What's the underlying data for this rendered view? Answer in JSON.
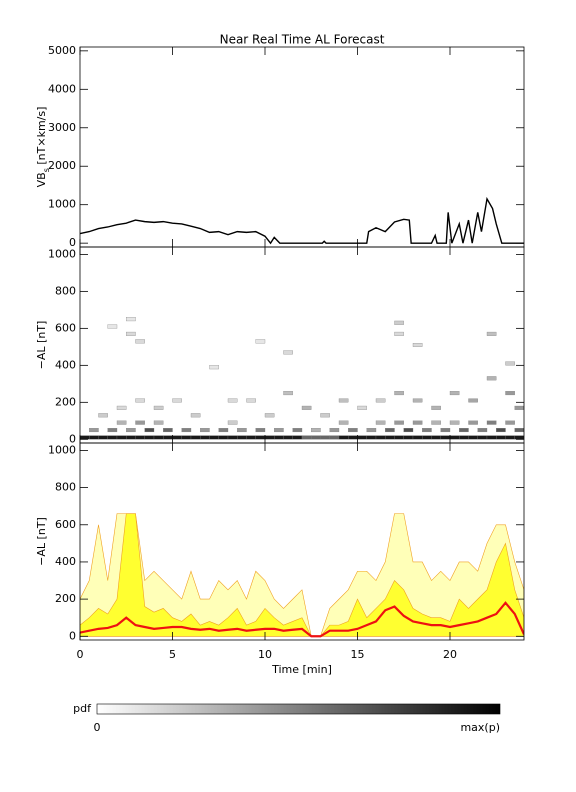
{
  "chart_data": [
    {
      "type": "line",
      "title": "Near Real Time AL Forecast",
      "ylabel": {
        "main": "VB",
        "sub": "s",
        "unit": " [nT×km/s]"
      },
      "color": "#000000",
      "x": [
        0,
        0.5,
        1,
        1.5,
        2,
        2.5,
        3,
        3.5,
        4,
        4.5,
        5,
        5.5,
        6,
        6.5,
        7,
        7.5,
        8,
        8.5,
        9,
        9.5,
        10,
        10.3,
        10.5,
        10.8,
        13.1,
        13.2,
        13.3,
        15.5,
        15.6,
        16,
        16.5,
        17,
        17.5,
        17.8,
        17.9,
        19,
        19.2,
        19.3,
        19.8,
        19.9,
        20.1,
        20.5,
        20.7,
        21,
        21.2,
        21.5,
        21.7,
        22,
        22.3,
        22.5,
        22.8,
        24
      ],
      "values": [
        250,
        300,
        380,
        420,
        480,
        520,
        600,
        560,
        540,
        560,
        520,
        500,
        440,
        380,
        280,
        300,
        220,
        300,
        280,
        300,
        180,
        0,
        150,
        0,
        0,
        50,
        0,
        0,
        300,
        400,
        300,
        550,
        620,
        600,
        0,
        0,
        200,
        0,
        0,
        800,
        0,
        500,
        0,
        600,
        0,
        800,
        300,
        1150,
        900,
        500,
        0,
        0
      ],
      "xlim": [
        0,
        24
      ],
      "xticks": [
        0,
        5,
        10,
        15,
        20
      ],
      "ylim": [
        -100,
        5100
      ],
      "yticks": [
        0,
        1000,
        2000,
        3000,
        4000,
        5000
      ]
    },
    {
      "type": "heatmap",
      "ylabel": "−AL [nT]",
      "x": [
        0,
        0.5,
        1,
        1.5,
        2,
        2.5,
        3,
        3.5,
        4,
        4.5,
        5,
        5.5,
        6,
        6.5,
        7,
        7.5,
        8,
        8.5,
        9,
        9.5,
        10,
        10.5,
        11,
        11.5,
        12,
        12.5,
        13,
        13.5,
        14,
        14.5,
        15,
        15.5,
        16,
        16.5,
        17,
        17.5,
        18,
        18.5,
        19,
        19.5,
        20,
        20.5,
        21,
        21.5,
        22,
        22.5,
        23,
        23.5,
        0.5,
        1.5,
        2.5,
        3.5,
        4.5,
        5.5,
        6.5,
        7.5,
        8.5,
        9.5,
        10.5,
        11.5,
        12.5,
        13.5,
        14.5,
        15.5,
        16.5,
        17.5,
        18.5,
        19.5,
        20.5,
        21.5,
        22.5,
        23.5,
        2,
        3,
        4,
        8,
        14,
        16,
        17,
        18,
        19,
        20,
        21,
        22,
        23,
        1,
        2,
        3,
        4,
        5,
        6,
        7,
        8,
        9,
        10,
        11,
        12,
        13,
        14,
        15,
        16,
        17,
        17,
        17,
        18,
        18,
        19,
        20,
        21,
        22,
        22,
        23,
        23,
        2.5,
        2.5,
        1.5,
        3,
        9.5,
        11,
        23.5
      ],
      "y": [
        0,
        0,
        0,
        0,
        0,
        0,
        0,
        0,
        0,
        0,
        0,
        0,
        0,
        0,
        0,
        0,
        0,
        0,
        0,
        0,
        0,
        0,
        0,
        0,
        0,
        0,
        0,
        0,
        0,
        0,
        0,
        0,
        0,
        0,
        0,
        0,
        0,
        0,
        0,
        0,
        0,
        0,
        0,
        0,
        0,
        0,
        0,
        0,
        40,
        40,
        40,
        40,
        40,
        40,
        40,
        40,
        40,
        40,
        40,
        40,
        40,
        40,
        40,
        40,
        40,
        40,
        40,
        40,
        40,
        40,
        40,
        40,
        80,
        80,
        80,
        80,
        80,
        80,
        80,
        80,
        80,
        80,
        80,
        80,
        80,
        120,
        160,
        200,
        160,
        200,
        120,
        380,
        200,
        200,
        120,
        240,
        160,
        120,
        200,
        160,
        200,
        240,
        620,
        560,
        200,
        500,
        160,
        240,
        200,
        320,
        560,
        400,
        240,
        560,
        640,
        600,
        520,
        520,
        460,
        160
      ],
      "values": [
        0.9,
        0.9,
        0.9,
        0.9,
        0.9,
        0.9,
        0.9,
        0.9,
        0.9,
        0.9,
        0.9,
        0.9,
        0.9,
        0.9,
        0.9,
        0.9,
        0.9,
        0.9,
        0.9,
        0.9,
        0.9,
        0.9,
        0.9,
        0.9,
        0.6,
        0.6,
        0.6,
        0.6,
        0.9,
        0.9,
        0.9,
        0.9,
        0.9,
        0.9,
        0.9,
        0.9,
        0.9,
        0.9,
        0.9,
        0.9,
        0.9,
        0.9,
        0.9,
        0.9,
        0.9,
        0.9,
        0.9,
        0.9,
        0.4,
        0.5,
        0.4,
        0.7,
        0.6,
        0.5,
        0.4,
        0.5,
        0.4,
        0.5,
        0.4,
        0.5,
        0.3,
        0.4,
        0.5,
        0.4,
        0.6,
        0.7,
        0.5,
        0.5,
        0.6,
        0.5,
        0.7,
        0.6,
        0.3,
        0.4,
        0.3,
        0.2,
        0.3,
        0.3,
        0.4,
        0.4,
        0.3,
        0.3,
        0.4,
        0.5,
        0.4,
        0.2,
        0.15,
        0.15,
        0.2,
        0.15,
        0.2,
        0.1,
        0.15,
        0.15,
        0.2,
        0.25,
        0.3,
        0.2,
        0.25,
        0.15,
        0.2,
        0.3,
        0.2,
        0.15,
        0.3,
        0.15,
        0.3,
        0.3,
        0.35,
        0.3,
        0.25,
        0.2,
        0.4,
        0.15,
        0.1,
        0.1,
        0.15,
        0.1,
        0.15,
        0.4
      ],
      "xlim": [
        0,
        24
      ],
      "xticks": [
        0,
        5,
        10,
        15,
        20
      ],
      "ylim": [
        -20,
        1040
      ],
      "yticks": [
        0,
        200,
        400,
        600,
        800,
        1000
      ]
    },
    {
      "type": "band",
      "ylabel": "−AL [nT]",
      "xlabel": "Time [min]",
      "x": [
        0,
        0.5,
        1,
        1.5,
        2,
        2.5,
        3,
        3.5,
        4,
        4.5,
        5,
        5.5,
        6,
        6.5,
        7,
        7.5,
        8,
        8.5,
        9,
        9.5,
        10,
        10.5,
        11,
        11.5,
        12,
        12.5,
        13,
        13.5,
        14,
        14.5,
        15,
        15.5,
        16,
        16.5,
        17,
        17.5,
        18,
        18.5,
        19,
        19.5,
        20,
        20.5,
        21,
        21.5,
        22,
        22.5,
        23,
        23.5,
        24
      ],
      "series": [
        {
          "type": "area",
          "color": "#ffffb8",
          "edge_color": "#f0a020",
          "values": [
            200,
            300,
            600,
            300,
            660,
            660,
            660,
            300,
            350,
            300,
            250,
            200,
            350,
            200,
            200,
            300,
            250,
            300,
            200,
            350,
            300,
            200,
            150,
            200,
            250,
            0,
            0,
            150,
            200,
            250,
            350,
            350,
            300,
            400,
            660,
            660,
            400,
            400,
            300,
            350,
            300,
            400,
            400,
            350,
            500,
            600,
            600,
            400,
            250
          ]
        },
        {
          "type": "area",
          "color": "#ffff30",
          "edge_color": "#f0a020",
          "values": [
            60,
            100,
            150,
            120,
            200,
            660,
            660,
            160,
            130,
            150,
            100,
            80,
            120,
            60,
            80,
            60,
            100,
            150,
            60,
            80,
            150,
            100,
            60,
            80,
            100,
            0,
            0,
            60,
            60,
            80,
            200,
            100,
            150,
            200,
            300,
            250,
            150,
            120,
            100,
            100,
            80,
            200,
            150,
            200,
            250,
            400,
            500,
            250,
            100
          ]
        },
        {
          "type": "line",
          "color": "#ee1111",
          "values": [
            20,
            30,
            40,
            45,
            60,
            100,
            60,
            50,
            40,
            45,
            50,
            50,
            40,
            35,
            40,
            30,
            35,
            40,
            30,
            35,
            40,
            40,
            30,
            35,
            40,
            0,
            0,
            30,
            30,
            30,
            40,
            60,
            80,
            140,
            160,
            110,
            80,
            70,
            60,
            60,
            50,
            60,
            70,
            80,
            100,
            120,
            180,
            120,
            10
          ]
        }
      ],
      "xlim": [
        0,
        24
      ],
      "xticks": [
        0,
        5,
        10,
        15,
        20
      ],
      "ylim": [
        -20,
        1040
      ],
      "yticks": [
        0,
        200,
        400,
        600,
        800,
        1000
      ]
    }
  ],
  "colorbar": {
    "label": "pdf",
    "min_label": "0",
    "max_label": "max(p)"
  }
}
